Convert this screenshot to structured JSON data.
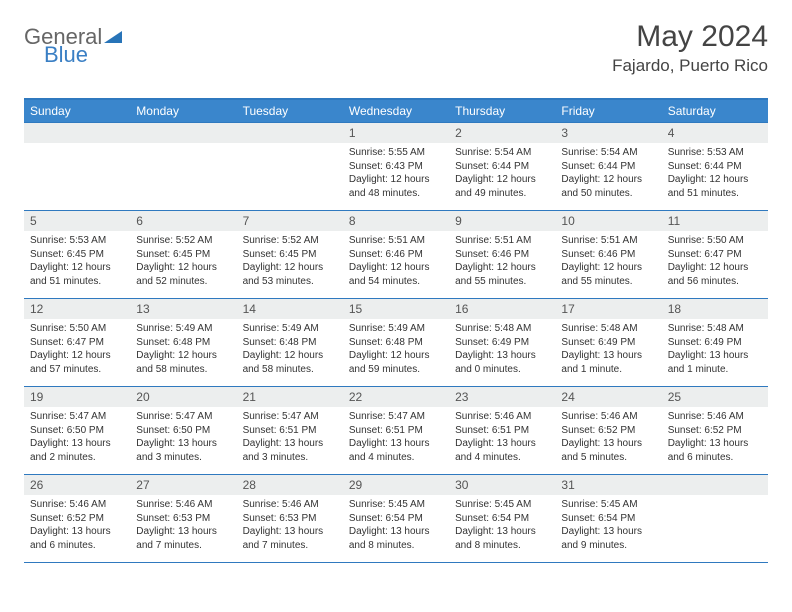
{
  "logo": {
    "part1": "General",
    "part2": "Blue"
  },
  "title": "May 2024",
  "location": "Fajardo, Puerto Rico",
  "colors": {
    "header_bg": "#3a86cc",
    "header_border": "#2f79bf",
    "daynum_bg": "#eceeee",
    "text": "#333333",
    "logo_blue": "#3a7fc4"
  },
  "weekdays": [
    "Sunday",
    "Monday",
    "Tuesday",
    "Wednesday",
    "Thursday",
    "Friday",
    "Saturday"
  ],
  "first_weekday_index": 3,
  "days": [
    {
      "n": 1,
      "sunrise": "5:55 AM",
      "sunset": "6:43 PM",
      "daylight": "12 hours and 48 minutes."
    },
    {
      "n": 2,
      "sunrise": "5:54 AM",
      "sunset": "6:44 PM",
      "daylight": "12 hours and 49 minutes."
    },
    {
      "n": 3,
      "sunrise": "5:54 AM",
      "sunset": "6:44 PM",
      "daylight": "12 hours and 50 minutes."
    },
    {
      "n": 4,
      "sunrise": "5:53 AM",
      "sunset": "6:44 PM",
      "daylight": "12 hours and 51 minutes."
    },
    {
      "n": 5,
      "sunrise": "5:53 AM",
      "sunset": "6:45 PM",
      "daylight": "12 hours and 51 minutes."
    },
    {
      "n": 6,
      "sunrise": "5:52 AM",
      "sunset": "6:45 PM",
      "daylight": "12 hours and 52 minutes."
    },
    {
      "n": 7,
      "sunrise": "5:52 AM",
      "sunset": "6:45 PM",
      "daylight": "12 hours and 53 minutes."
    },
    {
      "n": 8,
      "sunrise": "5:51 AM",
      "sunset": "6:46 PM",
      "daylight": "12 hours and 54 minutes."
    },
    {
      "n": 9,
      "sunrise": "5:51 AM",
      "sunset": "6:46 PM",
      "daylight": "12 hours and 55 minutes."
    },
    {
      "n": 10,
      "sunrise": "5:51 AM",
      "sunset": "6:46 PM",
      "daylight": "12 hours and 55 minutes."
    },
    {
      "n": 11,
      "sunrise": "5:50 AM",
      "sunset": "6:47 PM",
      "daylight": "12 hours and 56 minutes."
    },
    {
      "n": 12,
      "sunrise": "5:50 AM",
      "sunset": "6:47 PM",
      "daylight": "12 hours and 57 minutes."
    },
    {
      "n": 13,
      "sunrise": "5:49 AM",
      "sunset": "6:48 PM",
      "daylight": "12 hours and 58 minutes."
    },
    {
      "n": 14,
      "sunrise": "5:49 AM",
      "sunset": "6:48 PM",
      "daylight": "12 hours and 58 minutes."
    },
    {
      "n": 15,
      "sunrise": "5:49 AM",
      "sunset": "6:48 PM",
      "daylight": "12 hours and 59 minutes."
    },
    {
      "n": 16,
      "sunrise": "5:48 AM",
      "sunset": "6:49 PM",
      "daylight": "13 hours and 0 minutes."
    },
    {
      "n": 17,
      "sunrise": "5:48 AM",
      "sunset": "6:49 PM",
      "daylight": "13 hours and 1 minute."
    },
    {
      "n": 18,
      "sunrise": "5:48 AM",
      "sunset": "6:49 PM",
      "daylight": "13 hours and 1 minute."
    },
    {
      "n": 19,
      "sunrise": "5:47 AM",
      "sunset": "6:50 PM",
      "daylight": "13 hours and 2 minutes."
    },
    {
      "n": 20,
      "sunrise": "5:47 AM",
      "sunset": "6:50 PM",
      "daylight": "13 hours and 3 minutes."
    },
    {
      "n": 21,
      "sunrise": "5:47 AM",
      "sunset": "6:51 PM",
      "daylight": "13 hours and 3 minutes."
    },
    {
      "n": 22,
      "sunrise": "5:47 AM",
      "sunset": "6:51 PM",
      "daylight": "13 hours and 4 minutes."
    },
    {
      "n": 23,
      "sunrise": "5:46 AM",
      "sunset": "6:51 PM",
      "daylight": "13 hours and 4 minutes."
    },
    {
      "n": 24,
      "sunrise": "5:46 AM",
      "sunset": "6:52 PM",
      "daylight": "13 hours and 5 minutes."
    },
    {
      "n": 25,
      "sunrise": "5:46 AM",
      "sunset": "6:52 PM",
      "daylight": "13 hours and 6 minutes."
    },
    {
      "n": 26,
      "sunrise": "5:46 AM",
      "sunset": "6:52 PM",
      "daylight": "13 hours and 6 minutes."
    },
    {
      "n": 27,
      "sunrise": "5:46 AM",
      "sunset": "6:53 PM",
      "daylight": "13 hours and 7 minutes."
    },
    {
      "n": 28,
      "sunrise": "5:46 AM",
      "sunset": "6:53 PM",
      "daylight": "13 hours and 7 minutes."
    },
    {
      "n": 29,
      "sunrise": "5:45 AM",
      "sunset": "6:54 PM",
      "daylight": "13 hours and 8 minutes."
    },
    {
      "n": 30,
      "sunrise": "5:45 AM",
      "sunset": "6:54 PM",
      "daylight": "13 hours and 8 minutes."
    },
    {
      "n": 31,
      "sunrise": "5:45 AM",
      "sunset": "6:54 PM",
      "daylight": "13 hours and 9 minutes."
    }
  ],
  "labels": {
    "sunrise": "Sunrise:",
    "sunset": "Sunset:",
    "daylight": "Daylight:"
  }
}
